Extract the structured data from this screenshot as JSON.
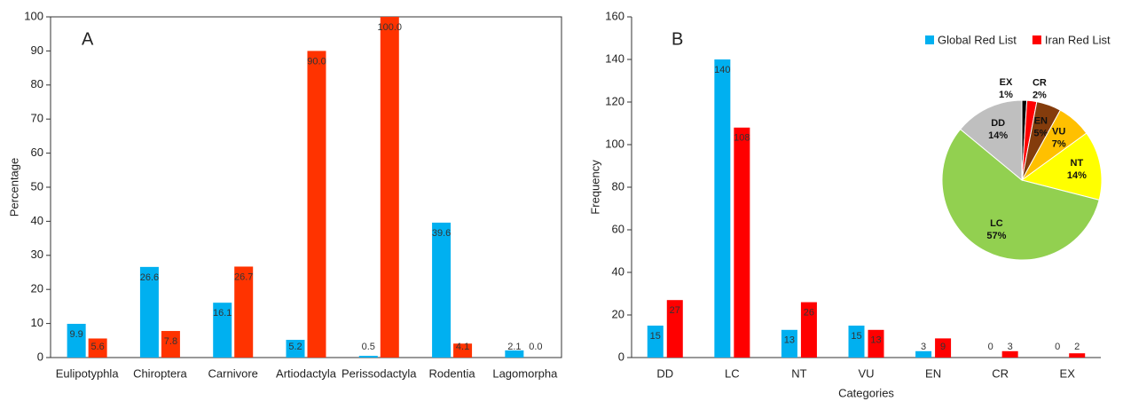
{
  "chart_data": [
    {
      "type": "bar",
      "label": "A",
      "ylabel": "Percentage",
      "categories": [
        "Eulipotyphla",
        "Chiroptera",
        "Carnivore",
        "Artiodactyla",
        "Perissodactyla",
        "Rodentia",
        "Lagomorpha"
      ],
      "series": [
        {
          "color": "#00b0f0",
          "values": [
            9.9,
            26.6,
            16.1,
            5.2,
            0.5,
            39.6,
            2.1
          ],
          "value_labels": [
            "9.9",
            "26.6",
            "16.1",
            "5.2",
            "0.5",
            "39.6",
            "2.1"
          ]
        },
        {
          "color": "#ff3300",
          "values": [
            5.6,
            7.8,
            26.7,
            90,
            100,
            4.1,
            0
          ],
          "value_labels": [
            "5.6",
            "7.8",
            "26.7",
            "90.0",
            "100.0",
            "4.1",
            "0.0"
          ]
        }
      ],
      "ylim": [
        0,
        100
      ],
      "yticks": [
        0,
        10,
        20,
        30,
        40,
        50,
        60,
        70,
        80,
        90,
        100
      ]
    },
    {
      "type": "bar",
      "label": "B",
      "xlabel": "Categories",
      "ylabel": "Frequency",
      "legend": "top-right",
      "categories": [
        "DD",
        "LC",
        "NT",
        "VU",
        "EN",
        "CR",
        "EX"
      ],
      "series": [
        {
          "name": "Global Red List",
          "color": "#00b0f0",
          "values": [
            15,
            140,
            13,
            15,
            3,
            0,
            0
          ]
        },
        {
          "name": "Iran Red List",
          "color": "#ff0000",
          "values": [
            27,
            108,
            26,
            13,
            9,
            3,
            2
          ]
        }
      ],
      "ylim": [
        0,
        160
      ],
      "yticks": [
        0,
        20,
        40,
        60,
        80,
        100,
        120,
        140,
        160
      ]
    },
    {
      "type": "pie",
      "categories": [
        "EX",
        "CR",
        "EN",
        "VU",
        "NT",
        "LC",
        "DD"
      ],
      "values": [
        1,
        2,
        5,
        7,
        14,
        57,
        14
      ],
      "value_labels": [
        "1%",
        "2%",
        "5%",
        "7%",
        "14%",
        "57%",
        "14%"
      ],
      "colors": [
        "#000000",
        "#ff0000",
        "#843c0c",
        "#ffc000",
        "#ffff00",
        "#92d050",
        "#bfbfbf"
      ]
    }
  ]
}
